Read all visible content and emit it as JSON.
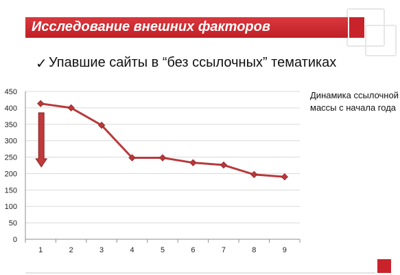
{
  "slide": {
    "title": "Исследование внешних факторов",
    "bullet_mark": "✓",
    "bullet_text": "Упавшие сайты в “без ссылочных” тематиках",
    "side_note": "Динамика ссылочной массы с начала года"
  },
  "colors": {
    "accent": "#c8232a",
    "series_line": "#b8393b",
    "arrow": "#c0393b",
    "grid": "#d9d9d9"
  },
  "chart_data": {
    "type": "line",
    "title": "",
    "xlabel": "",
    "ylabel": "",
    "x": [
      1,
      2,
      3,
      4,
      5,
      6,
      7,
      8,
      9
    ],
    "series": [
      {
        "values": [
          413,
          400,
          347,
          248,
          248,
          233,
          226,
          197,
          190
        ]
      }
    ],
    "ylim": [
      0,
      450
    ],
    "yticks": [
      0,
      50,
      100,
      150,
      200,
      250,
      300,
      350,
      400,
      450
    ],
    "grid": true,
    "annotations": [
      {
        "type": "down-arrow",
        "x": 1,
        "from": 385,
        "to": 220
      }
    ]
  }
}
